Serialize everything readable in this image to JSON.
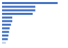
{
  "chart_data": {
    "type": "bar",
    "orientation": "horizontal",
    "categories": [
      null,
      null,
      null,
      null,
      null,
      null,
      null,
      null,
      null,
      null,
      null,
      null
    ],
    "values": [
      87,
      52,
      52,
      48,
      16,
      16,
      14,
      12,
      11,
      10,
      9,
      6
    ],
    "colors": [
      "#4472c4",
      "#4472c4",
      "#4472c4",
      "#4472c4",
      "#4472c4",
      "#4472c4",
      "#4472c4",
      "#4472c4",
      "#4472c4",
      "#4472c4",
      "#4472c4",
      "#c5d3ea"
    ],
    "xlim": [
      0,
      100
    ],
    "tick_labels": false
  }
}
